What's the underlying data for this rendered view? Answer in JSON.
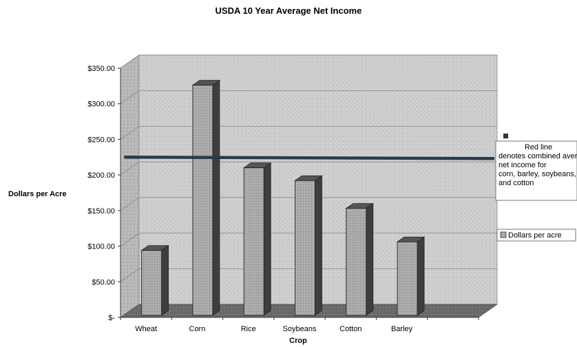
{
  "chart_data": {
    "type": "bar",
    "title": "USDA 10 Year Average Net Income",
    "xlabel": "Crop",
    "ylabel": "Dollars per Acre",
    "categories": [
      "Wheat",
      "Corn",
      "Rice",
      "Soybeans",
      "Cotton",
      "Barley"
    ],
    "series": [
      {
        "name": "Dollars per acre",
        "values": [
          98,
          330,
          214,
          196,
          157,
          110
        ],
        "color": "#a8a8a8"
      }
    ],
    "ylim": [
      0,
      350
    ],
    "yticks": [
      {
        "value": 0,
        "label": "$-"
      },
      {
        "value": 50,
        "label": "$50.00"
      },
      {
        "value": 100,
        "label": "$100.00"
      },
      {
        "value": 150,
        "label": "$150.00"
      },
      {
        "value": 200,
        "label": "$200.00"
      },
      {
        "value": 250,
        "label": "$250.00"
      },
      {
        "value": 300,
        "label": "$300.00"
      },
      {
        "value": 350,
        "label": "$350.00"
      }
    ],
    "reference_line": {
      "value": 214,
      "color": "#2a3a48",
      "legend_label": "Red line denotes combined average net income for corn, barley, soybeans, and cotton"
    },
    "grid": true,
    "legend_position": "right",
    "style": "3d-bar"
  }
}
